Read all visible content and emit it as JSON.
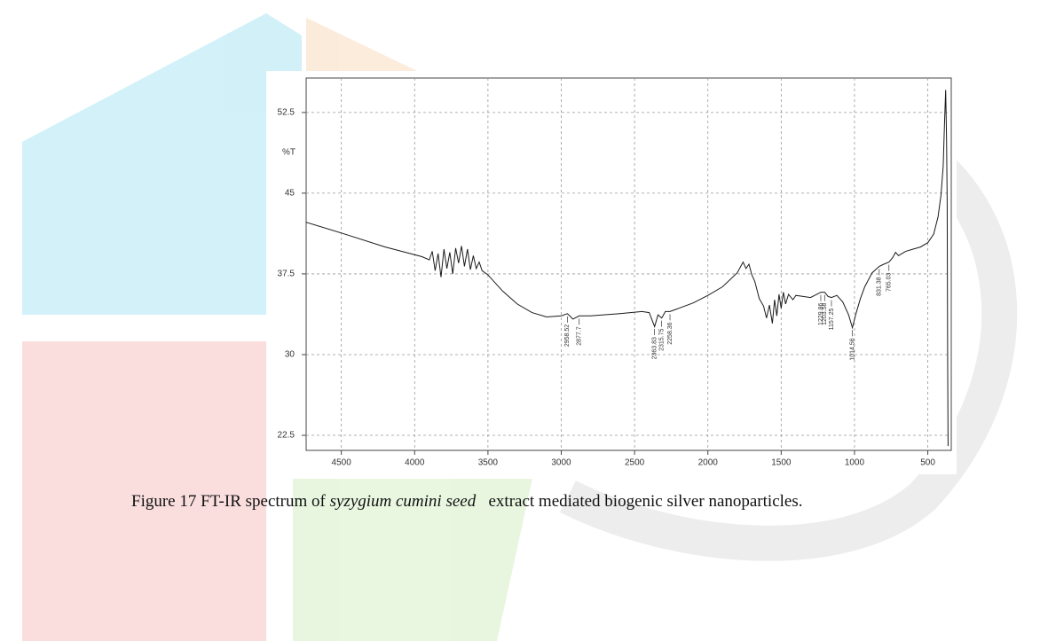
{
  "chart_data": {
    "type": "line",
    "y_label": "%T",
    "color": "#1a1a1a",
    "grid": true,
    "xlim": [
      4740,
      340
    ],
    "ylim": [
      21.1,
      55.7
    ],
    "xticks": [
      4500,
      4000,
      3500,
      3000,
      2500,
      2000,
      1500,
      1000,
      500
    ],
    "yticks": [
      52.5,
      45,
      37.5,
      30,
      22.5
    ],
    "x": [
      4740,
      4500,
      4200,
      3950,
      3900,
      3880,
      3860,
      3840,
      3820,
      3800,
      3780,
      3760,
      3740,
      3720,
      3700,
      3680,
      3660,
      3640,
      3620,
      3600,
      3580,
      3560,
      3540,
      3500,
      3400,
      3300,
      3200,
      3100,
      3000,
      2958,
      2920,
      2877,
      2800,
      2600,
      2450,
      2400,
      2363,
      2340,
      2315,
      2290,
      2258,
      2200,
      2100,
      2000,
      1900,
      1800,
      1760,
      1740,
      1720,
      1700,
      1680,
      1650,
      1620,
      1600,
      1580,
      1560,
      1545,
      1530,
      1515,
      1500,
      1485,
      1470,
      1450,
      1420,
      1400,
      1350,
      1300,
      1229,
      1203,
      1180,
      1157,
      1120,
      1080,
      1040,
      1014,
      990,
      960,
      930,
      880,
      831,
      800,
      765,
      740,
      720,
      700,
      650,
      600,
      550,
      500,
      460,
      430,
      410,
      395,
      385,
      378,
      372,
      368,
      365,
      362
    ],
    "values": [
      42.3,
      41.3,
      40.0,
      39.1,
      38.8,
      39.6,
      37.8,
      39.4,
      37.2,
      39.8,
      38.0,
      39.5,
      37.5,
      39.9,
      38.5,
      40.1,
      38.2,
      39.8,
      37.9,
      39.2,
      38.0,
      38.6,
      37.8,
      37.4,
      35.9,
      34.7,
      33.9,
      33.5,
      33.6,
      33.8,
      33.3,
      33.6,
      33.6,
      33.8,
      34.0,
      33.9,
      32.6,
      33.7,
      33.4,
      34.0,
      34.0,
      34.3,
      34.8,
      35.5,
      36.3,
      37.6,
      38.6,
      38.0,
      38.4,
      37.4,
      36.8,
      35.2,
      34.5,
      33.4,
      34.6,
      32.9,
      35.1,
      33.6,
      35.6,
      34.3,
      35.8,
      34.7,
      35.6,
      35.1,
      35.5,
      35.4,
      35.3,
      35.8,
      35.8,
      35.4,
      35.3,
      35.5,
      34.9,
      33.7,
      32.5,
      33.8,
      35.2,
      36.3,
      37.6,
      38.2,
      38.4,
      38.6,
      39.0,
      39.5,
      39.2,
      39.6,
      39.8,
      40.0,
      40.4,
      41.2,
      42.8,
      44.8,
      47.5,
      52.0,
      54.6,
      50.0,
      44.0,
      30.0,
      21.5
    ],
    "peaks": [
      2958.52,
      2877.7,
      2363.83,
      2315.75,
      2258.36,
      1229.86,
      1203.58,
      1157.25,
      1014.56,
      831.38,
      765.03
    ]
  },
  "caption": {
    "prefix": "Figure 17 FT-IR spectrum of ",
    "italic": "syzygium cumini seed",
    "suffix": "   extract mediated biogenic silver nanoparticles."
  }
}
